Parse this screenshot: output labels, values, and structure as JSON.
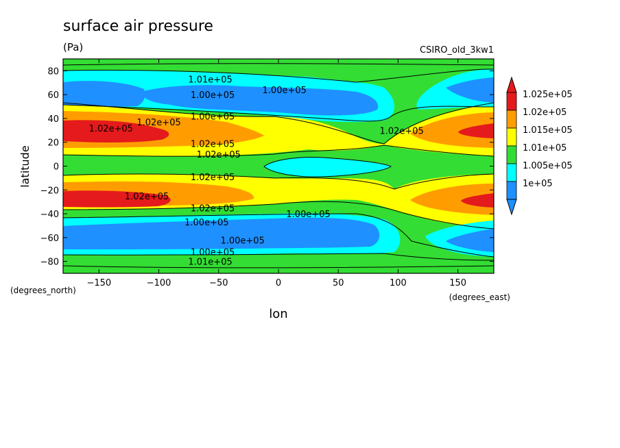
{
  "chart_data": {
    "type": "heatmap",
    "title": "surface air pressure",
    "units": "(Pa)",
    "model": "CSIRO_old_3kw1",
    "xlabel": "lon",
    "ylabel": "latitude",
    "x_units_label": "(degrees_east)",
    "y_units_label": "(degrees_north)",
    "xlim": [
      -180,
      180
    ],
    "ylim": [
      -90,
      90
    ],
    "x_ticks": [
      -150,
      -100,
      -50,
      0,
      50,
      100,
      150
    ],
    "y_ticks": [
      -80,
      -60,
      -40,
      -20,
      0,
      20,
      40,
      60,
      80
    ],
    "legend": {
      "placement": "right",
      "levels": [
        "1.025e+05",
        "1.02e+05",
        "1.015e+05",
        "1.01e+05",
        "1.005e+05",
        "1e+05"
      ],
      "colors": [
        "#e41a1c",
        "#ff9d00",
        "#ffff00",
        "#33dd33",
        "#00ffff",
        "#1e90ff"
      ],
      "extend_top_color": "#e41a1c",
      "extend_bottom_color": "#1e90ff"
    },
    "latitude_profile": [
      {
        "lat": 90,
        "band": "1.01e+05"
      },
      {
        "lat": 60,
        "band": "1e+05"
      },
      {
        "lat": 28,
        "band": "1.025e+05"
      },
      {
        "lat": 0,
        "band": "1.005e+05"
      },
      {
        "lat": -28,
        "band": "1.025e+05"
      },
      {
        "lat": -55,
        "band": "1e+05"
      },
      {
        "lat": -90,
        "band": "1.01e+05"
      }
    ],
    "contour_labels": [
      {
        "text": "1.01e+05",
        "lon": -57,
        "lat": 73
      },
      {
        "text": "1.00e+05",
        "lon": -55,
        "lat": 60
      },
      {
        "text": "1.00e+05",
        "lon": 5,
        "lat": 64
      },
      {
        "text": "1.00e+05",
        "lon": -55,
        "lat": 42
      },
      {
        "text": "1.02e+05",
        "lon": -100,
        "lat": 37
      },
      {
        "text": "1.02e+05",
        "lon": -140,
        "lat": 32
      },
      {
        "text": "1.02e+05",
        "lon": -55,
        "lat": 19
      },
      {
        "text": "1.02e+05",
        "lon": -50,
        "lat": 10
      },
      {
        "text": "1.02e+05",
        "lon": 103,
        "lat": 30
      },
      {
        "text": "1.02e+05",
        "lon": -55,
        "lat": -9
      },
      {
        "text": "1.02e+05",
        "lon": -110,
        "lat": -25
      },
      {
        "text": "1.02e+05",
        "lon": -55,
        "lat": -35
      },
      {
        "text": "1.00e+05",
        "lon": 25,
        "lat": -40
      },
      {
        "text": "1.00e+05",
        "lon": -60,
        "lat": -47
      },
      {
        "text": "1.00e+05",
        "lon": -30,
        "lat": -62
      },
      {
        "text": "1.00e+05",
        "lon": -55,
        "lat": -72
      },
      {
        "text": "1.01e+05",
        "lon": -57,
        "lat": -80
      }
    ]
  }
}
